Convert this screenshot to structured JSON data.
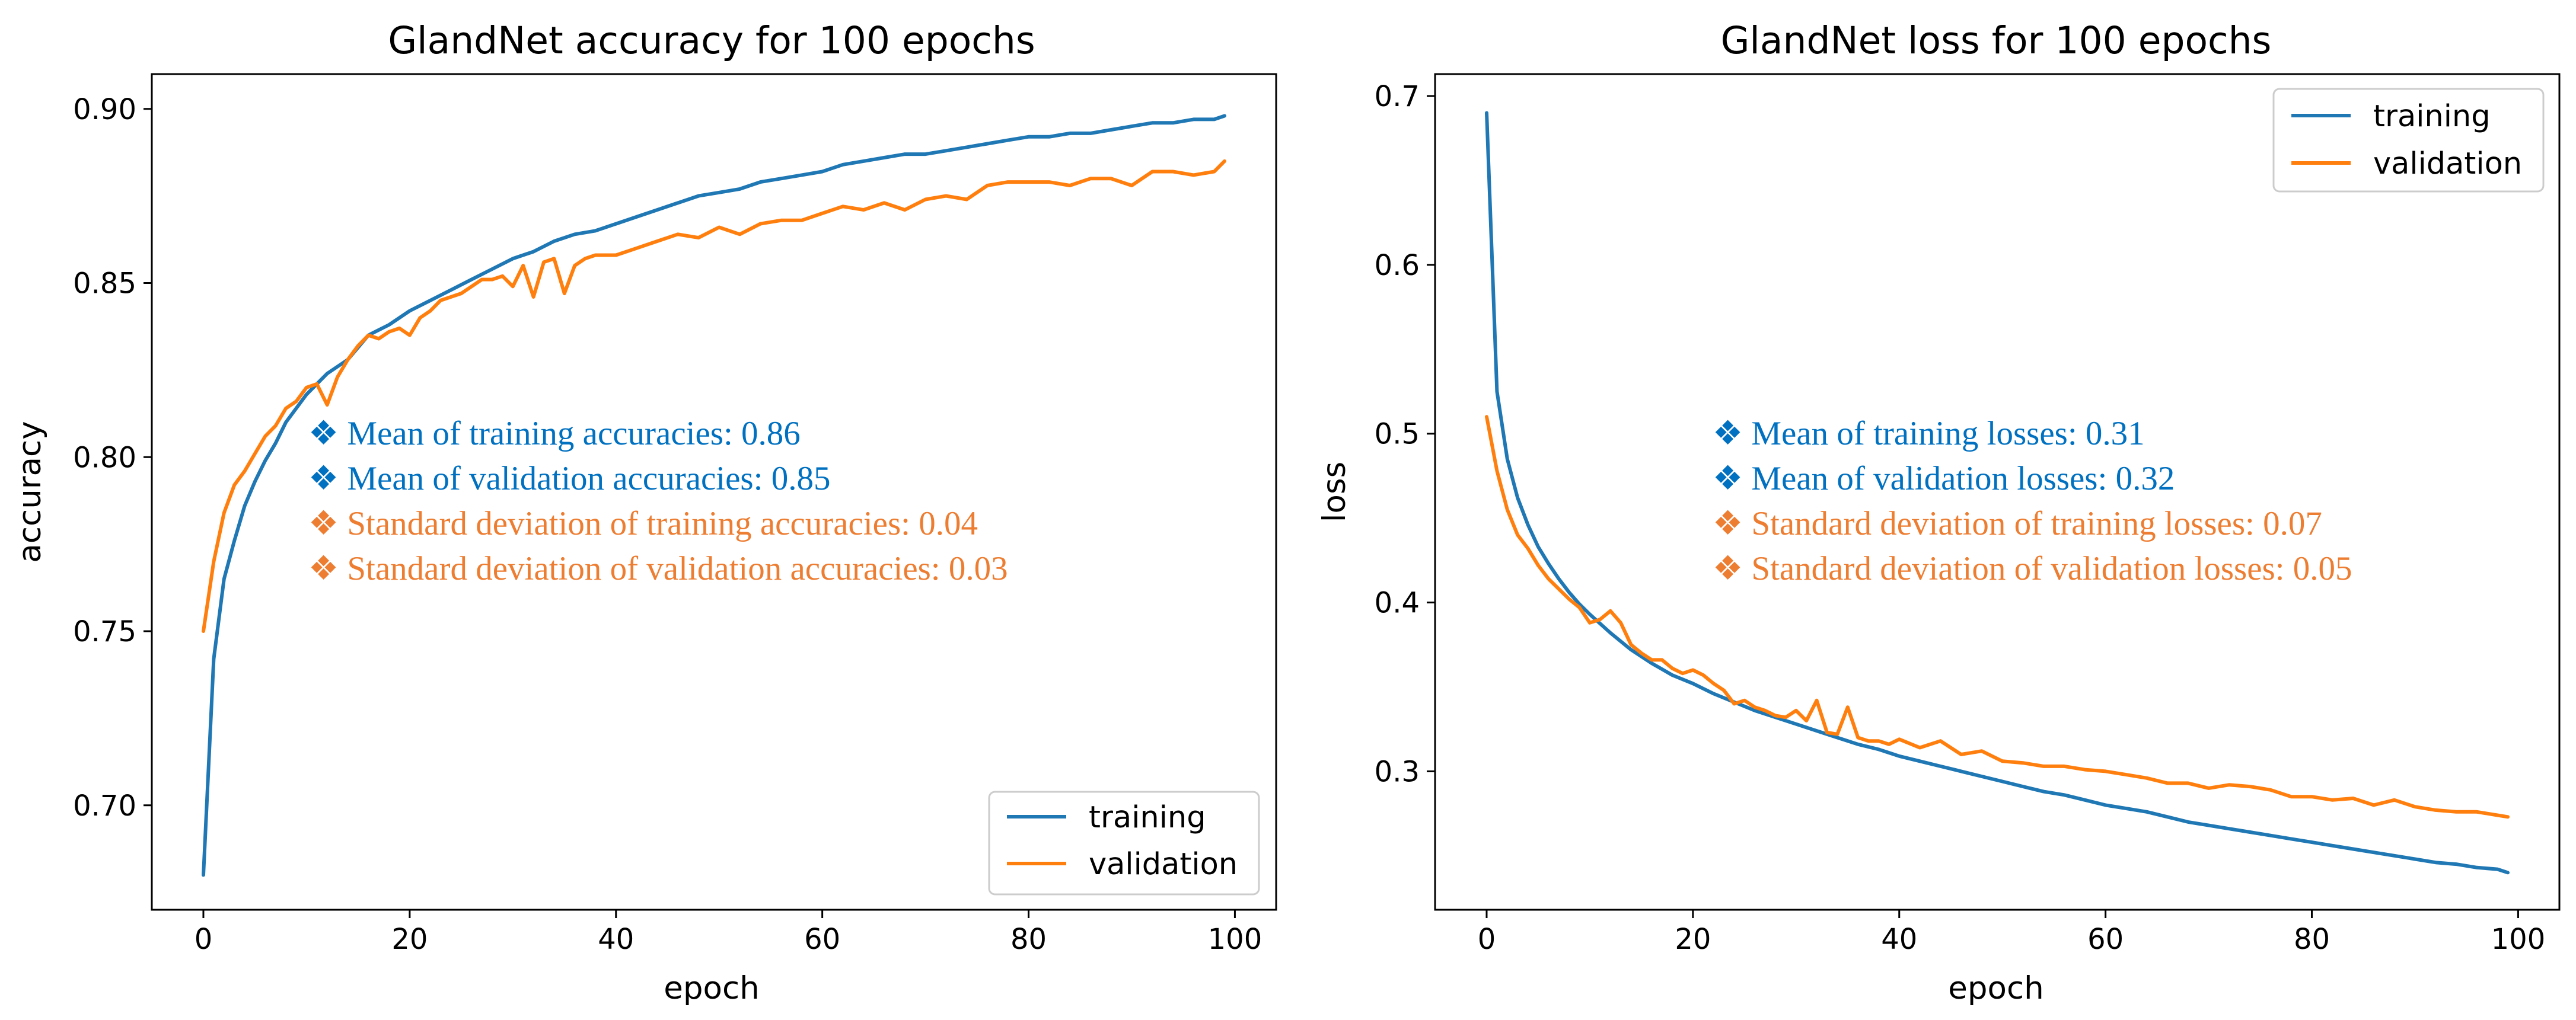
{
  "colors": {
    "training": "#1f77b4",
    "validation": "#ff7f0e"
  },
  "chart_data": [
    {
      "type": "line",
      "title": "GlandNet accuracy for 100 epochs",
      "xlabel": "epoch",
      "ylabel": "accuracy",
      "xlim": [
        -5,
        104
      ],
      "ylim": [
        0.67,
        0.91
      ],
      "xticks": [
        "0",
        "20",
        "40",
        "60",
        "80",
        "100"
      ],
      "yticks": [
        "0.70",
        "0.75",
        "0.80",
        "0.85",
        "0.90"
      ],
      "legend": {
        "position": "bottom-right",
        "entries": [
          "training",
          "validation"
        ]
      },
      "annotations": [
        {
          "text": "❖ Mean of training accuracies: 0.86",
          "color": "#0070c0"
        },
        {
          "text": "❖ Mean of validation accuracies: 0.85",
          "color": "#0070c0"
        },
        {
          "text": "❖ Standard deviation of training accuracies: 0.04",
          "color": "#ed7d31"
        },
        {
          "text": "❖ Standard deviation of validation accuracies: 0.03",
          "color": "#ed7d31"
        }
      ],
      "series": [
        {
          "name": "training",
          "x": [
            0,
            1,
            2,
            3,
            4,
            5,
            6,
            7,
            8,
            9,
            10,
            12,
            14,
            16,
            18,
            20,
            22,
            24,
            26,
            28,
            30,
            32,
            34,
            36,
            38,
            40,
            42,
            44,
            46,
            48,
            50,
            52,
            54,
            56,
            58,
            60,
            62,
            64,
            66,
            68,
            70,
            72,
            74,
            76,
            78,
            80,
            82,
            84,
            86,
            88,
            90,
            92,
            94,
            96,
            98,
            99
          ],
          "values": [
            0.68,
            0.742,
            0.765,
            0.776,
            0.786,
            0.793,
            0.799,
            0.804,
            0.81,
            0.814,
            0.818,
            0.824,
            0.828,
            0.835,
            0.838,
            0.842,
            0.845,
            0.848,
            0.851,
            0.854,
            0.857,
            0.859,
            0.862,
            0.864,
            0.865,
            0.867,
            0.869,
            0.871,
            0.873,
            0.875,
            0.876,
            0.877,
            0.879,
            0.88,
            0.881,
            0.882,
            0.884,
            0.885,
            0.886,
            0.887,
            0.887,
            0.888,
            0.889,
            0.89,
            0.891,
            0.892,
            0.892,
            0.893,
            0.893,
            0.894,
            0.895,
            0.896,
            0.896,
            0.897,
            0.897,
            0.898
          ]
        },
        {
          "name": "validation",
          "x": [
            0,
            1,
            2,
            3,
            4,
            5,
            6,
            7,
            8,
            9,
            10,
            11,
            12,
            13,
            14,
            15,
            16,
            17,
            18,
            19,
            20,
            21,
            22,
            23,
            24,
            25,
            26,
            27,
            28,
            29,
            30,
            31,
            32,
            33,
            34,
            35,
            36,
            37,
            38,
            39,
            40,
            42,
            44,
            46,
            48,
            50,
            52,
            54,
            56,
            58,
            60,
            62,
            64,
            66,
            68,
            70,
            72,
            74,
            76,
            78,
            80,
            82,
            84,
            86,
            88,
            90,
            92,
            94,
            96,
            98,
            99
          ],
          "values": [
            0.75,
            0.77,
            0.784,
            0.792,
            0.796,
            0.801,
            0.806,
            0.809,
            0.814,
            0.816,
            0.82,
            0.821,
            0.815,
            0.823,
            0.828,
            0.832,
            0.835,
            0.834,
            0.836,
            0.837,
            0.835,
            0.84,
            0.842,
            0.845,
            0.846,
            0.847,
            0.849,
            0.851,
            0.851,
            0.852,
            0.849,
            0.855,
            0.846,
            0.856,
            0.857,
            0.847,
            0.855,
            0.857,
            0.858,
            0.858,
            0.858,
            0.86,
            0.862,
            0.864,
            0.863,
            0.866,
            0.864,
            0.867,
            0.868,
            0.868,
            0.87,
            0.872,
            0.871,
            0.873,
            0.871,
            0.874,
            0.875,
            0.874,
            0.878,
            0.879,
            0.879,
            0.879,
            0.878,
            0.88,
            0.88,
            0.878,
            0.882,
            0.882,
            0.881,
            0.882,
            0.885
          ]
        }
      ]
    },
    {
      "type": "line",
      "title": "GlandNet loss for 100 epochs",
      "xlabel": "epoch",
      "ylabel": "loss",
      "xlim": [
        -5,
        104
      ],
      "ylim": [
        0.218,
        0.713
      ],
      "xticks": [
        "0",
        "20",
        "40",
        "60",
        "80",
        "100"
      ],
      "yticks": [
        "0.3",
        "0.4",
        "0.5",
        "0.6",
        "0.7"
      ],
      "legend": {
        "position": "top-right",
        "entries": [
          "training",
          "validation"
        ]
      },
      "annotations": [
        {
          "text": "❖ Mean of training losses: 0.31",
          "color": "#0070c0"
        },
        {
          "text": "❖ Mean of validation losses: 0.32",
          "color": "#0070c0"
        },
        {
          "text": "❖ Standard deviation of training losses: 0.07",
          "color": "#ed7d31"
        },
        {
          "text": "❖ Standard deviation of validation losses: 0.05",
          "color": "#ed7d31"
        }
      ],
      "series": [
        {
          "name": "training",
          "x": [
            0,
            1,
            2,
            3,
            4,
            5,
            6,
            7,
            8,
            9,
            10,
            12,
            14,
            16,
            18,
            20,
            22,
            24,
            26,
            28,
            30,
            32,
            34,
            36,
            38,
            40,
            42,
            44,
            46,
            48,
            50,
            52,
            54,
            56,
            58,
            60,
            62,
            64,
            66,
            68,
            70,
            72,
            74,
            76,
            78,
            80,
            82,
            84,
            86,
            88,
            90,
            92,
            94,
            96,
            98,
            99
          ],
          "values": [
            0.69,
            0.525,
            0.485,
            0.462,
            0.446,
            0.433,
            0.423,
            0.414,
            0.406,
            0.399,
            0.393,
            0.382,
            0.372,
            0.364,
            0.357,
            0.352,
            0.346,
            0.341,
            0.336,
            0.332,
            0.328,
            0.324,
            0.32,
            0.316,
            0.313,
            0.309,
            0.306,
            0.303,
            0.3,
            0.297,
            0.294,
            0.291,
            0.288,
            0.286,
            0.283,
            0.28,
            0.278,
            0.276,
            0.273,
            0.27,
            0.268,
            0.266,
            0.264,
            0.262,
            0.26,
            0.258,
            0.256,
            0.254,
            0.252,
            0.25,
            0.248,
            0.246,
            0.245,
            0.243,
            0.242,
            0.24
          ]
        },
        {
          "name": "validation",
          "x": [
            0,
            1,
            2,
            3,
            4,
            5,
            6,
            7,
            8,
            9,
            10,
            11,
            12,
            13,
            14,
            15,
            16,
            17,
            18,
            19,
            20,
            21,
            22,
            23,
            24,
            25,
            26,
            27,
            28,
            29,
            30,
            31,
            32,
            33,
            34,
            35,
            36,
            37,
            38,
            39,
            40,
            42,
            44,
            46,
            48,
            50,
            52,
            54,
            56,
            58,
            60,
            62,
            64,
            66,
            68,
            70,
            72,
            74,
            76,
            78,
            80,
            82,
            84,
            86,
            88,
            90,
            92,
            94,
            96,
            98,
            99
          ],
          "values": [
            0.51,
            0.478,
            0.455,
            0.44,
            0.432,
            0.422,
            0.414,
            0.408,
            0.402,
            0.397,
            0.388,
            0.39,
            0.395,
            0.388,
            0.375,
            0.37,
            0.366,
            0.366,
            0.361,
            0.358,
            0.36,
            0.357,
            0.352,
            0.348,
            0.34,
            0.342,
            0.338,
            0.336,
            0.333,
            0.332,
            0.336,
            0.33,
            0.342,
            0.323,
            0.322,
            0.338,
            0.32,
            0.318,
            0.318,
            0.316,
            0.319,
            0.314,
            0.318,
            0.31,
            0.312,
            0.306,
            0.305,
            0.303,
            0.303,
            0.301,
            0.3,
            0.298,
            0.296,
            0.293,
            0.293,
            0.29,
            0.292,
            0.291,
            0.289,
            0.285,
            0.285,
            0.283,
            0.284,
            0.28,
            0.283,
            0.279,
            0.277,
            0.276,
            0.276,
            0.274,
            0.273
          ]
        }
      ]
    }
  ]
}
